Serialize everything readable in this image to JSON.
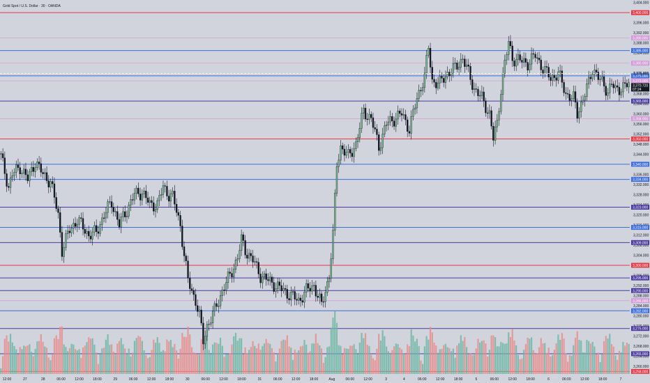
{
  "chart_data": {
    "type": "candlestick",
    "title": "Gold Spot / U.S. Dollar · 30 · OANDA",
    "y_range": [
      3257,
      3405
    ],
    "y_ticks": [
      3260.0,
      3264.0,
      3268.0,
      3272.0,
      3276.0,
      3280.0,
      3284.0,
      3288.0,
      3292.0,
      3296.0,
      3300.0,
      3304.0,
      3308.0,
      3312.0,
      3316.0,
      3320.0,
      3324.0,
      3328.0,
      3332.0,
      3336.0,
      3340.0,
      3344.0,
      3348.0,
      3352.0,
      3356.0,
      3360.0,
      3364.0,
      3368.0,
      3372.0,
      3376.0,
      3380.0,
      3384.0,
      3388.0,
      3392.0,
      3396.0,
      3400.0,
      3404.0
    ],
    "x_ticks": [
      "12:00",
      "27",
      "28",
      "06:00",
      "12:00",
      "18:00",
      "29",
      "06:00",
      "12:00",
      "18:00",
      "30",
      "06:00",
      "12:00",
      "18:00",
      "31",
      "06:00",
      "12:00",
      "18:00",
      "Aug",
      "06:00",
      "12:00",
      "3",
      "4",
      "06:00",
      "12:00",
      "18:00",
      "5",
      "06:00",
      "12:00",
      "18:00",
      "6",
      "06:00",
      "12:00",
      "18:00",
      "7"
    ],
    "levels": [
      {
        "price": 3400.0,
        "label": "3,400.000",
        "color": "#e53945",
        "style": "solid"
      },
      {
        "price": 3390.0,
        "label": "3,390.000",
        "color": "#d49ad8",
        "style": "thin"
      },
      {
        "price": 3385.0,
        "label": "3,385.000",
        "color": "#3b6de0",
        "style": "solid"
      },
      {
        "price": 3380.0,
        "label": "3,380.000",
        "color": "#d49ad8",
        "style": "thin"
      },
      {
        "price": 3375.0,
        "label": "3,375.000",
        "color": "#3b6de0",
        "style": "solid"
      },
      {
        "price": 3373.0,
        "label": "3,373.000",
        "color": "#d49ad8",
        "style": "thin"
      },
      {
        "price": 3365.0,
        "label": "3,365.000",
        "color": "#4b3a9e",
        "style": "solid"
      },
      {
        "price": 3358.0,
        "label": "3,358.000",
        "color": "#d49ad8",
        "style": "thin"
      },
      {
        "price": 3350.0,
        "label": "3,350.000",
        "color": "#e53945",
        "style": "solid"
      },
      {
        "price": 3340.0,
        "label": "3,340.000",
        "color": "#3b6de0",
        "style": "solid"
      },
      {
        "price": 3334.0,
        "label": "3,334.000",
        "color": "#3b6de0",
        "style": "solid"
      },
      {
        "price": 3323.0,
        "label": "3,323.000",
        "color": "#4b3a9e",
        "style": "solid"
      },
      {
        "price": 3315.0,
        "label": "3,315.000",
        "color": "#3b6de0",
        "style": "solid"
      },
      {
        "price": 3309.0,
        "label": "3,309.000",
        "color": "#4b3a9e",
        "style": "solid"
      },
      {
        "price": 3300.0,
        "label": "3,300.000",
        "color": "#e53945",
        "style": "solid"
      },
      {
        "price": 3295.0,
        "label": "3,295.000",
        "color": "#4b3a9e",
        "style": "solid"
      },
      {
        "price": 3290.0,
        "label": "3,290.000",
        "color": "#4b3a9e",
        "style": "solid"
      },
      {
        "price": 3286.0,
        "label": "3,286.000",
        "color": "#d49ad8",
        "style": "thin"
      },
      {
        "price": 3282.0,
        "label": "3,282.000",
        "color": "#3b6de0",
        "style": "solid"
      },
      {
        "price": 3275.0,
        "label": "3,275.000",
        "color": "#4b3a9e",
        "style": "solid"
      },
      {
        "price": 3265.0,
        "label": "3,265.000",
        "color": "#4b3a9e",
        "style": "solid"
      },
      {
        "price": 3258.0,
        "label": "3,258.000",
        "color": "#e53945",
        "style": "solid"
      }
    ],
    "current_price": {
      "value": 3370.72,
      "label": "3,370.720",
      "countdown": "07:24"
    },
    "dashed_price": {
      "value": 3375.891,
      "label": "3,375.891"
    },
    "price_path": [
      [
        0,
        3343
      ],
      [
        4,
        3331
      ],
      [
        6,
        3336
      ],
      [
        10,
        3339
      ],
      [
        14,
        3334
      ],
      [
        18,
        3341
      ],
      [
        22,
        3336
      ],
      [
        26,
        3333
      ],
      [
        30,
        3320
      ],
      [
        32,
        3306
      ],
      [
        36,
        3314
      ],
      [
        40,
        3318
      ],
      [
        46,
        3312
      ],
      [
        50,
        3313
      ],
      [
        54,
        3320
      ],
      [
        58,
        3325
      ],
      [
        62,
        3316
      ],
      [
        66,
        3322
      ],
      [
        70,
        3328
      ],
      [
        74,
        3329
      ],
      [
        78,
        3324
      ],
      [
        82,
        3324
      ],
      [
        85,
        3331
      ],
      [
        88,
        3328
      ],
      [
        90,
        3327
      ],
      [
        94,
        3316
      ],
      [
        96,
        3304
      ],
      [
        98,
        3294
      ],
      [
        102,
        3286
      ],
      [
        104,
        3280
      ],
      [
        106,
        3270
      ],
      [
        108,
        3276
      ],
      [
        112,
        3282
      ],
      [
        116,
        3290
      ],
      [
        120,
        3296
      ],
      [
        124,
        3303
      ],
      [
        126,
        3310
      ],
      [
        128,
        3306
      ],
      [
        132,
        3302
      ],
      [
        136,
        3296
      ],
      [
        140,
        3294
      ],
      [
        144,
        3292
      ],
      [
        148,
        3290
      ],
      [
        152,
        3288
      ],
      [
        156,
        3286
      ],
      [
        160,
        3290
      ],
      [
        164,
        3292
      ],
      [
        166,
        3288
      ],
      [
        168,
        3284
      ],
      [
        170,
        3290
      ],
      [
        172,
        3296
      ],
      [
        174,
        3312
      ],
      [
        176,
        3340
      ],
      [
        178,
        3347
      ],
      [
        182,
        3343
      ],
      [
        186,
        3348
      ],
      [
        190,
        3361
      ],
      [
        194,
        3358
      ],
      [
        198,
        3347
      ],
      [
        202,
        3356
      ],
      [
        206,
        3358
      ],
      [
        210,
        3360
      ],
      [
        214,
        3354
      ],
      [
        218,
        3366
      ],
      [
        222,
        3375
      ],
      [
        224,
        3386
      ],
      [
        226,
        3373
      ],
      [
        230,
        3372
      ],
      [
        234,
        3376
      ],
      [
        238,
        3378
      ],
      [
        242,
        3382
      ],
      [
        244,
        3378
      ],
      [
        248,
        3370
      ],
      [
        252,
        3366
      ],
      [
        256,
        3360
      ],
      [
        258,
        3350
      ],
      [
        260,
        3356
      ],
      [
        262,
        3370
      ],
      [
        264,
        3380
      ],
      [
        266,
        3388
      ],
      [
        268,
        3382
      ],
      [
        272,
        3381
      ],
      [
        276,
        3380
      ],
      [
        280,
        3383
      ],
      [
        284,
        3378
      ],
      [
        288,
        3374
      ],
      [
        292,
        3376
      ],
      [
        296,
        3368
      ],
      [
        300,
        3366
      ],
      [
        302,
        3360
      ],
      [
        304,
        3364
      ],
      [
        308,
        3372
      ],
      [
        310,
        3378
      ],
      [
        312,
        3376
      ],
      [
        314,
        3373
      ],
      [
        318,
        3369
      ],
      [
        320,
        3372
      ],
      [
        322,
        3369
      ],
      [
        326,
        3371
      ]
    ],
    "volume": "per-bar histogram, red = down bar, teal = up bar"
  }
}
